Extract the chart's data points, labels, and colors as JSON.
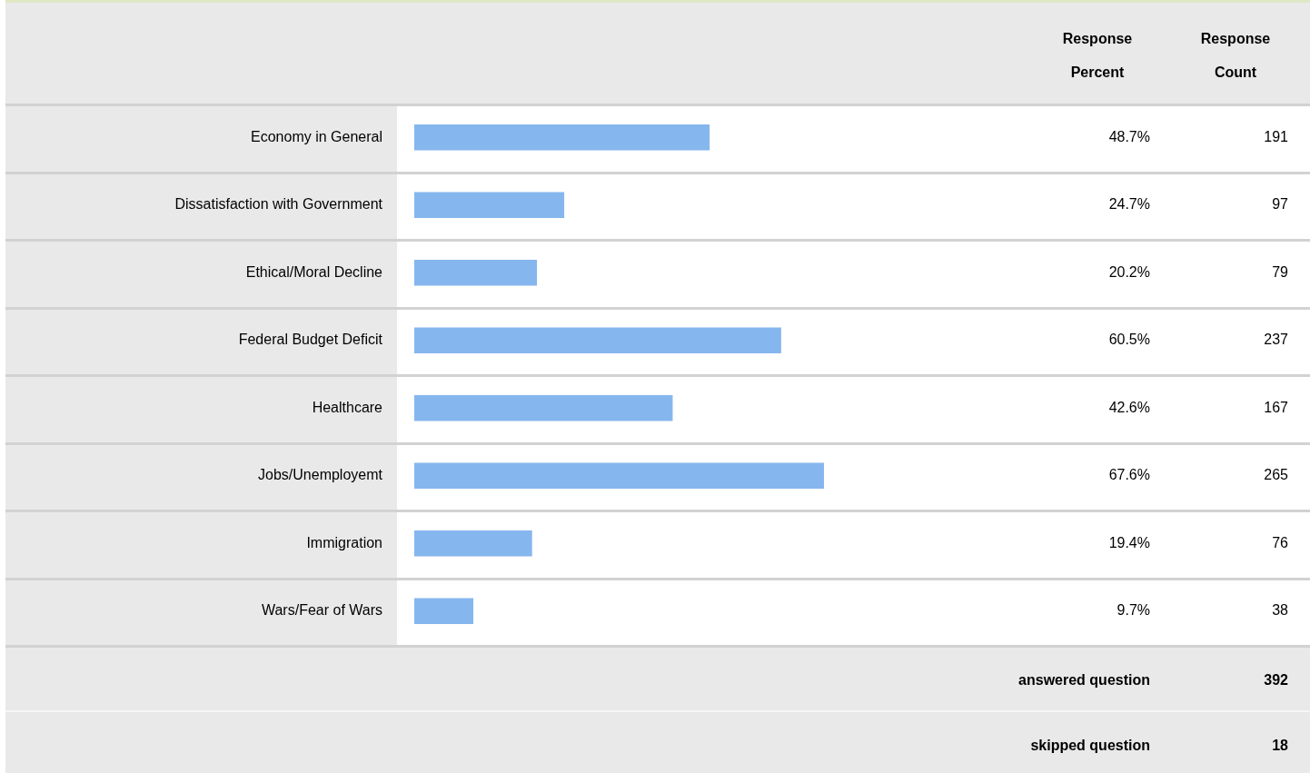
{
  "chart_data": {
    "type": "bar",
    "orientation": "horizontal",
    "categories": [
      "Economy in General",
      "Dissatisfaction with Government",
      "Ethical/Moral Decline",
      "Federal Budget Deficit",
      "Healthcare",
      "Jobs/Unemployemt",
      "Immigration",
      "Wars/Fear of Wars"
    ],
    "values": [
      48.7,
      24.7,
      20.2,
      60.5,
      42.6,
      67.6,
      19.4,
      9.7
    ],
    "value_labels": [
      "48.7%",
      "24.7%",
      "20.2%",
      "60.5%",
      "42.6%",
      "67.6%",
      "19.4%",
      "9.7%"
    ],
    "color": "#86b6ee",
    "tick_labels": "y",
    "legend": false,
    "grid": false,
    "annotations": [
      "Response Percent",
      "Response Count",
      "answered question",
      "392",
      "skipped question",
      "18",
      "191",
      "97",
      "79",
      "237",
      "167",
      "265",
      "76",
      "38"
    ]
  }
}
